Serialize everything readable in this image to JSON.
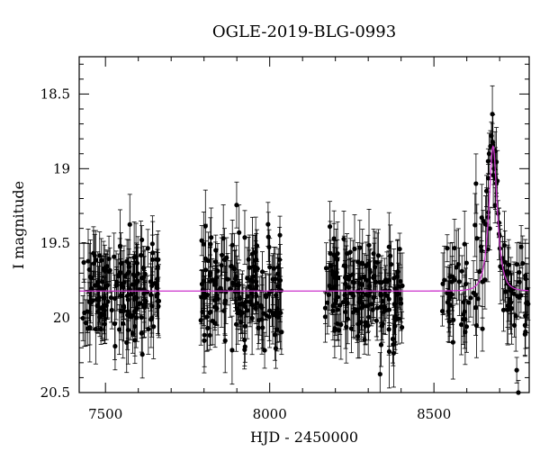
{
  "chart_data": {
    "type": "scatter",
    "title": "OGLE-2019-BLG-0993",
    "xlabel": "HJD - 2450000",
    "ylabel": "I magnitude",
    "xlim": [
      7420,
      8790
    ],
    "ylim": [
      20.5,
      18.25
    ],
    "y_inverted": true,
    "grid": false,
    "x_ticks": [
      7500,
      8000,
      8500
    ],
    "y_ticks": [
      18.5,
      19,
      19.5,
      20,
      20.5
    ],
    "x_tick_labels": [
      "7500",
      "8000",
      "8500"
    ],
    "y_tick_labels": [
      "18.5",
      "19",
      "19.5",
      "20",
      "20.5"
    ],
    "seasons": [
      {
        "start": 7430,
        "end": 7665
      },
      {
        "start": 7790,
        "end": 8040
      },
      {
        "start": 8165,
        "end": 8405
      },
      {
        "start": 8525,
        "end": 8790
      }
    ],
    "baseline_magnitude": 19.82,
    "typical_error": 0.17,
    "series": [
      {
        "type": "line",
        "color": "#cc33cc",
        "model": {
          "kind": "point-lens",
          "baseline": 19.82,
          "t0": 8680,
          "tE": 20,
          "u0": 0.72,
          "peak_magnitude": 18.85
        }
      },
      {
        "type": "scatter",
        "color": "#000000",
        "event_points": [
          {
            "x": 8660,
            "y": 19.15
          },
          {
            "x": 8665,
            "y": 18.95
          },
          {
            "x": 8668,
            "y": 18.9
          },
          {
            "x": 8672,
            "y": 18.85
          },
          {
            "x": 8675,
            "y": 18.78
          },
          {
            "x": 8678,
            "y": 18.82
          },
          {
            "x": 8680,
            "y": 18.95
          },
          {
            "x": 8683,
            "y": 19.0
          },
          {
            "x": 8686,
            "y": 18.88
          },
          {
            "x": 8690,
            "y": 19.1
          },
          {
            "x": 8695,
            "y": 19.3
          },
          {
            "x": 8700,
            "y": 19.45
          },
          {
            "x": 8650,
            "y": 19.35
          },
          {
            "x": 8645,
            "y": 19.55
          },
          {
            "x": 8710,
            "y": 19.6
          },
          {
            "x": 8720,
            "y": 19.7
          },
          {
            "x": 8735,
            "y": 19.8
          },
          {
            "x": 8745,
            "y": 20.05
          },
          {
            "x": 8752,
            "y": 20.35
          },
          {
            "x": 8757,
            "y": 20.5
          }
        ]
      }
    ]
  }
}
